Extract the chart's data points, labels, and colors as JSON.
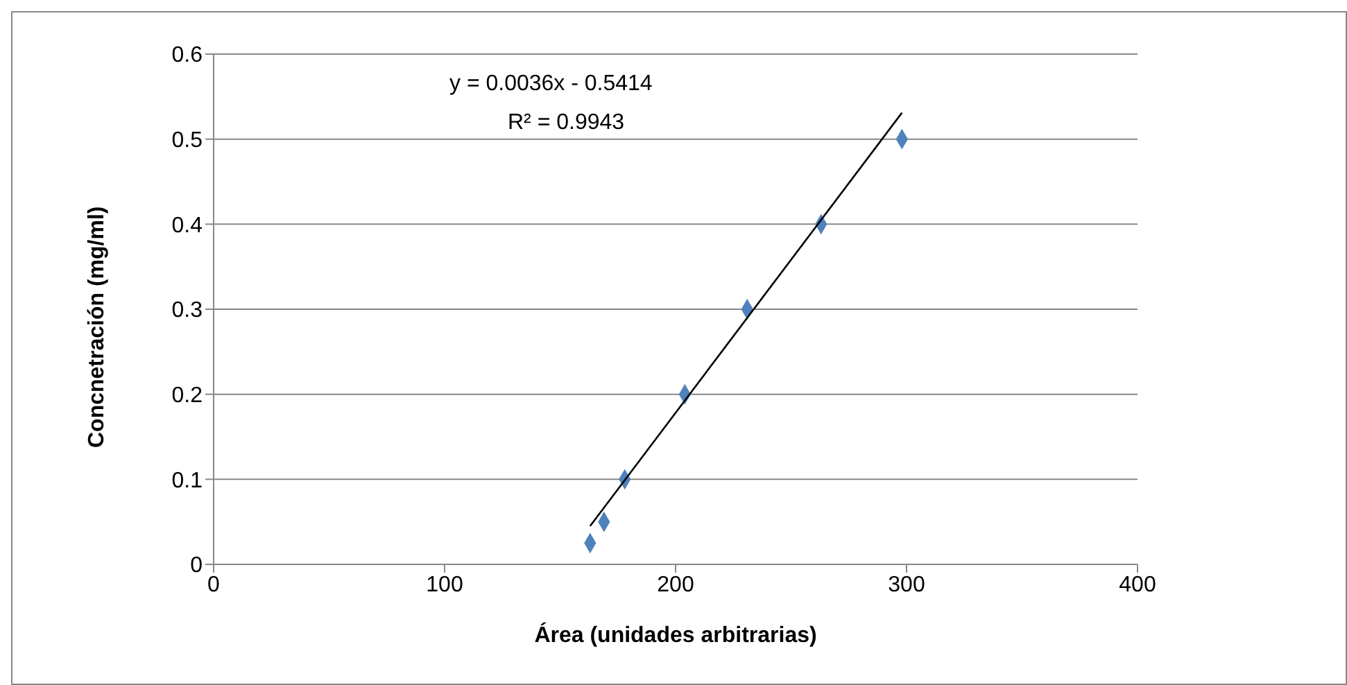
{
  "chart_data": {
    "type": "scatter",
    "xlabel": "Área (unidades arbitrarias)",
    "ylabel": "Concnetración (mg/ml)",
    "annotations": [
      "y = 0.0036x - 0.5414",
      "R² = 0.9943"
    ],
    "x": [
      163,
      169,
      178,
      204,
      231,
      263,
      298
    ],
    "series": [
      {
        "color": "#4f81bd",
        "marker": "diamond",
        "values": [
          0.025,
          0.05,
          0.1,
          0.2,
          0.3,
          0.4,
          0.5
        ]
      },
      {
        "type": "line",
        "color": "#000000",
        "marker": "none",
        "x": [
          163,
          298
        ],
        "values": [
          0.045,
          0.531
        ]
      }
    ],
    "xlim": [
      0,
      400
    ],
    "xticks": [
      0,
      100,
      200,
      300,
      400
    ],
    "ylim": [
      0,
      0.6
    ],
    "yticks": [
      0,
      0.1,
      0.2,
      0.3,
      0.4,
      0.5,
      0.6
    ],
    "grid": "y"
  }
}
